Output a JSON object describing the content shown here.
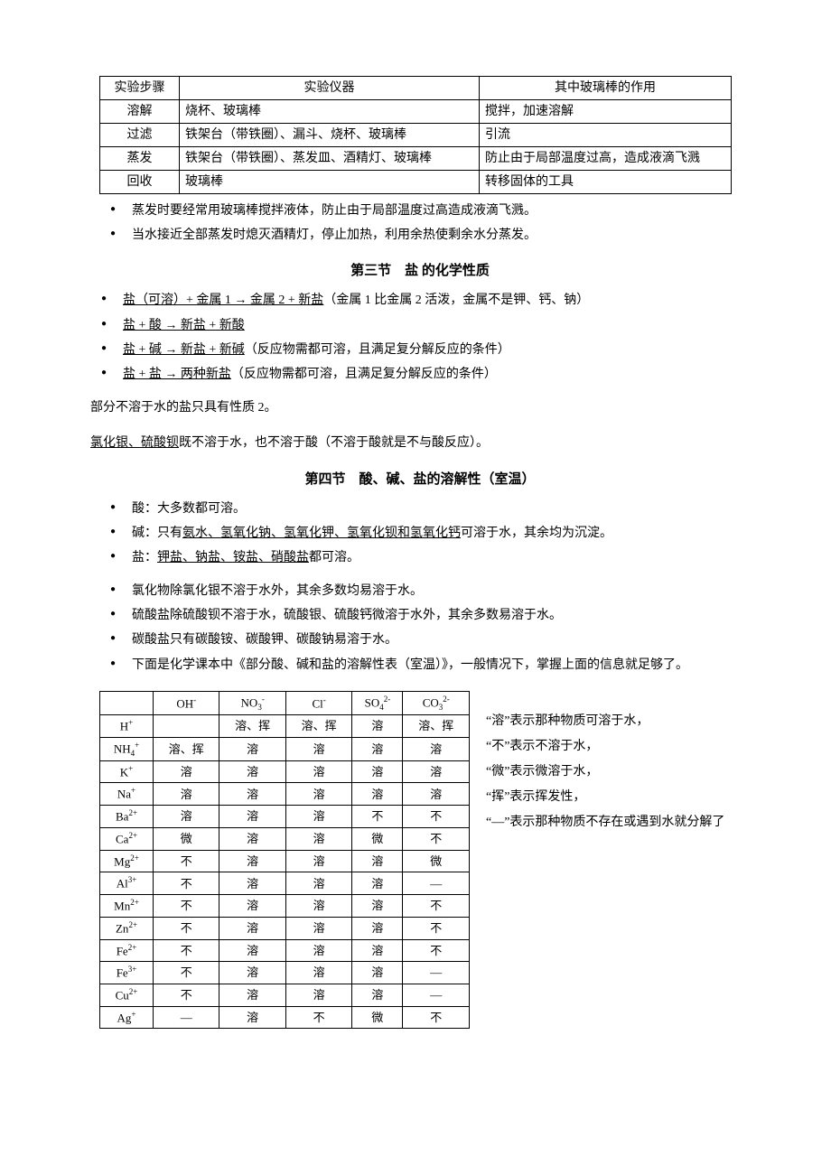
{
  "table1": {
    "headers": [
      "实验步骤",
      "实验仪器",
      "其中玻璃棒的作用"
    ],
    "rows": [
      [
        "溶解",
        "烧杯、玻璃棒",
        "搅拌，加速溶解"
      ],
      [
        "过滤",
        "铁架台（带铁圈）、漏斗、烧杯、玻璃棒",
        "引流"
      ],
      [
        "蒸发",
        "铁架台（带铁圈）、蒸发皿、酒精灯、玻璃棒",
        "防止由于局部温度过高，造成液滴飞溅"
      ],
      [
        "回收",
        "玻璃棒",
        "转移固体的工具"
      ]
    ]
  },
  "notes1": [
    "蒸发时要经常用玻璃棒搅拌液体，防止由于局部温度过高造成液滴飞溅。",
    "当水接近全部蒸发时熄灭酒精灯，停止加热，利用余热使剩余水分蒸发。"
  ],
  "section3": {
    "title": "第三节　盐 的化学性质",
    "items": [
      {
        "u": "盐（可溶）+ 金属 1 → 金属 2 + 新盐",
        "rest": "（金属 1 比金属 2 活泼，金属不是钾、钙、钠）"
      },
      {
        "u": "盐 + 酸 → 新盐 + 新酸",
        "rest": ""
      },
      {
        "u": "盐 + 碱 → 新盐 + 新碱",
        "rest": "（反应物需都可溶，且满足复分解反应的条件）"
      },
      {
        "u": "盐 + 盐 → 两种新盐",
        "rest": "（反应物需都可溶，且满足复分解反应的条件）"
      }
    ],
    "tail1": "部分不溶于水的盐只具有性质 2。",
    "tail2_u": "氯化银、硫酸钡",
    "tail2_rest": "既不溶于水，也不溶于酸（不溶于酸就是不与酸反应）。"
  },
  "section4": {
    "title": "第四节　酸、碱、盐的溶解性（室温）",
    "bullets_a": [
      {
        "pre": "酸：大多数都可溶。",
        "u": "",
        "post": ""
      },
      {
        "pre": "碱：只有",
        "u": "氨水、氢氧化钠、氢氧化钾、氢氧化钡和氢氧化钙",
        "post": "可溶于水，其余均为沉淀。"
      },
      {
        "pre": "盐：",
        "u": "钾盐、钠盐、铵盐、硝酸盐",
        "post": "都可溶。"
      }
    ],
    "bullets_b": [
      "氯化物除氯化银不溶于水外，其余多数均易溶于水。",
      "硫酸盐除硫酸钡不溶于水，硫酸银、硫酸钙微溶于水外，其余多数易溶于水。",
      "碳酸盐只有碳酸铵、碳酸钾、碳酸钠易溶于水。",
      "下面是化学课本中《部分酸、碱和盐的溶解性表（室温）》，一般情况下，掌握上面的信息就足够了。"
    ]
  },
  "sol_table": {
    "cols": [
      "",
      "OH⁻",
      "NO₃⁻",
      "Cl⁻",
      "SO₄²⁻",
      "CO₃²⁻"
    ],
    "rows": [
      {
        "ion": "H⁺",
        "c": [
          "",
          "溶、挥",
          "溶、挥",
          "溶",
          "溶、挥"
        ]
      },
      {
        "ion": "NH₄⁺",
        "c": [
          "溶、挥",
          "溶",
          "溶",
          "溶",
          "溶"
        ]
      },
      {
        "ion": "K⁺",
        "c": [
          "溶",
          "溶",
          "溶",
          "溶",
          "溶"
        ]
      },
      {
        "ion": "Na⁺",
        "c": [
          "溶",
          "溶",
          "溶",
          "溶",
          "溶"
        ]
      },
      {
        "ion": "Ba²⁺",
        "c": [
          "溶",
          "溶",
          "溶",
          "不",
          "不"
        ]
      },
      {
        "ion": "Ca²⁺",
        "c": [
          "微",
          "溶",
          "溶",
          "微",
          "不"
        ]
      },
      {
        "ion": "Mg²⁺",
        "c": [
          "不",
          "溶",
          "溶",
          "溶",
          "微"
        ]
      },
      {
        "ion": "Al³⁺",
        "c": [
          "不",
          "溶",
          "溶",
          "溶",
          "—"
        ]
      },
      {
        "ion": "Mn²⁺",
        "c": [
          "不",
          "溶",
          "溶",
          "溶",
          "不"
        ]
      },
      {
        "ion": "Zn²⁺",
        "c": [
          "不",
          "溶",
          "溶",
          "溶",
          "不"
        ]
      },
      {
        "ion": "Fe²⁺",
        "c": [
          "不",
          "溶",
          "溶",
          "溶",
          "不"
        ]
      },
      {
        "ion": "Fe³⁺",
        "c": [
          "不",
          "溶",
          "溶",
          "溶",
          "—"
        ]
      },
      {
        "ion": "Cu²⁺",
        "c": [
          "不",
          "溶",
          "溶",
          "溶",
          "—"
        ]
      },
      {
        "ion": "Ag⁺",
        "c": [
          "—",
          "溶",
          "不",
          "微",
          "不"
        ]
      }
    ]
  },
  "legend": [
    "“溶”表示那种物质可溶于水，",
    "“不”表示不溶于水，",
    "“微”表示微溶于水，",
    "“挥”表示挥发性，",
    "“—”表示那种物质不存在或遇到水就分解了"
  ]
}
